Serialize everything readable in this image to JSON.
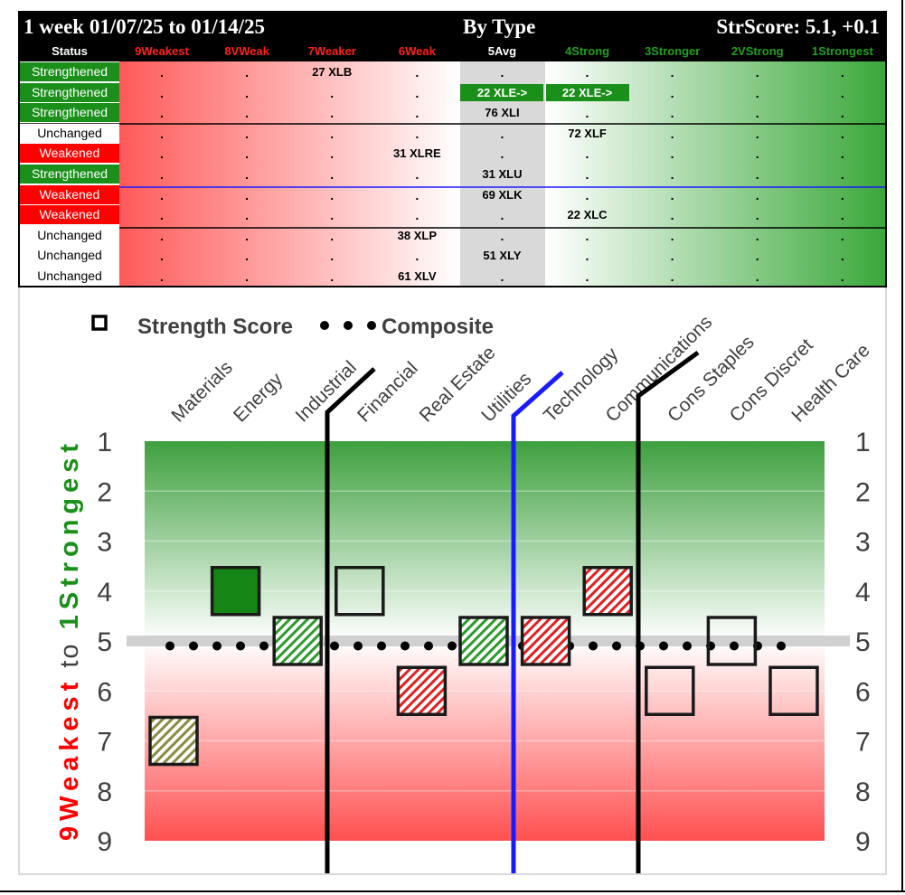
{
  "header": {
    "period": "1 week 01/07/25 to 01/14/25",
    "grouping": "By Type",
    "score": "StrScore: 5.1, +0.1"
  },
  "columns": [
    {
      "label": "Status",
      "color": "#ffffff"
    },
    {
      "label": "9Weakest",
      "color": "#ff2020"
    },
    {
      "label": "8VWeak",
      "color": "#ff2020"
    },
    {
      "label": "7Weaker",
      "color": "#ff2020"
    },
    {
      "label": "6Weak",
      "color": "#ff2020"
    },
    {
      "label": "5Avg",
      "color": "#ffffff"
    },
    {
      "label": "4Strong",
      "color": "#1fa020"
    },
    {
      "label": "3Stronger",
      "color": "#1fa020"
    },
    {
      "label": "2VStrong",
      "color": "#1fa020"
    },
    {
      "label": "1Strongest",
      "color": "#1fa020"
    }
  ],
  "rows": [
    {
      "status": "Strengthened",
      "entries": [
        {
          "col": 3,
          "text": "27 XLB"
        }
      ]
    },
    {
      "status": "Strengthened",
      "entries": [
        {
          "col": 5,
          "text": "22 XLE->",
          "hl": true
        },
        {
          "col": 6,
          "text": "22 XLE->",
          "hl": true
        }
      ]
    },
    {
      "status": "Strengthened",
      "entries": [
        {
          "col": 5,
          "text": "76 XLI"
        }
      ]
    },
    {
      "status": "Unchanged",
      "entries": [
        {
          "col": 6,
          "text": "72 XLF"
        }
      ]
    },
    {
      "status": "Weakened",
      "entries": [
        {
          "col": 4,
          "text": "31 XLRE"
        }
      ]
    },
    {
      "status": "Strengthened",
      "entries": [
        {
          "col": 5,
          "text": "31 XLU"
        }
      ]
    },
    {
      "status": "Weakened",
      "entries": [
        {
          "col": 5,
          "text": "69 XLK"
        }
      ]
    },
    {
      "status": "Weakened",
      "entries": [
        {
          "col": 6,
          "text": "22 XLC"
        }
      ]
    },
    {
      "status": "Unchanged",
      "entries": [
        {
          "col": 4,
          "text": "38 XLP"
        }
      ]
    },
    {
      "status": "Unchanged",
      "entries": [
        {
          "col": 5,
          "text": "51 XLY"
        }
      ]
    },
    {
      "status": "Unchanged",
      "entries": [
        {
          "col": 4,
          "text": "61 XLV"
        }
      ]
    }
  ],
  "dot_char": ".",
  "status_colors": {
    "Strengthened": "#1a8f1a",
    "Weakened": "#ff0000",
    "Unchanged": "#ffffff"
  },
  "chart_data": {
    "type": "scatter",
    "legend": [
      {
        "label": "Strength Score",
        "marker": "square"
      },
      {
        "label": "Composite",
        "marker": "dots"
      }
    ],
    "y_axis_title_parts": [
      {
        "text": "9Weakest",
        "color": "#ff0000"
      },
      {
        "text": "to",
        "color": "#404040"
      },
      {
        "text": "1Strongest",
        "color": "#1a8f1a"
      }
    ],
    "ylim": [
      1,
      9
    ],
    "yticks": [
      "1",
      "2",
      "3",
      "4",
      "5",
      "6",
      "7",
      "8",
      "9"
    ],
    "categories": [
      "Materials",
      "Energy",
      "Industrial",
      "Financial",
      "Real Estate",
      "Utilities",
      "Technology",
      "Communications",
      "Cons Staples",
      "Cons Discret",
      "Health Care"
    ],
    "values": [
      7,
      4,
      5,
      4,
      6,
      5,
      5,
      4,
      6,
      5,
      6
    ],
    "styles": [
      "hatch-olive",
      "solid-green",
      "hatch-green",
      "open",
      "hatch-red",
      "hatch-green",
      "hatch-red",
      "hatch-red",
      "open",
      "open",
      "open"
    ],
    "composite": 5.1
  }
}
